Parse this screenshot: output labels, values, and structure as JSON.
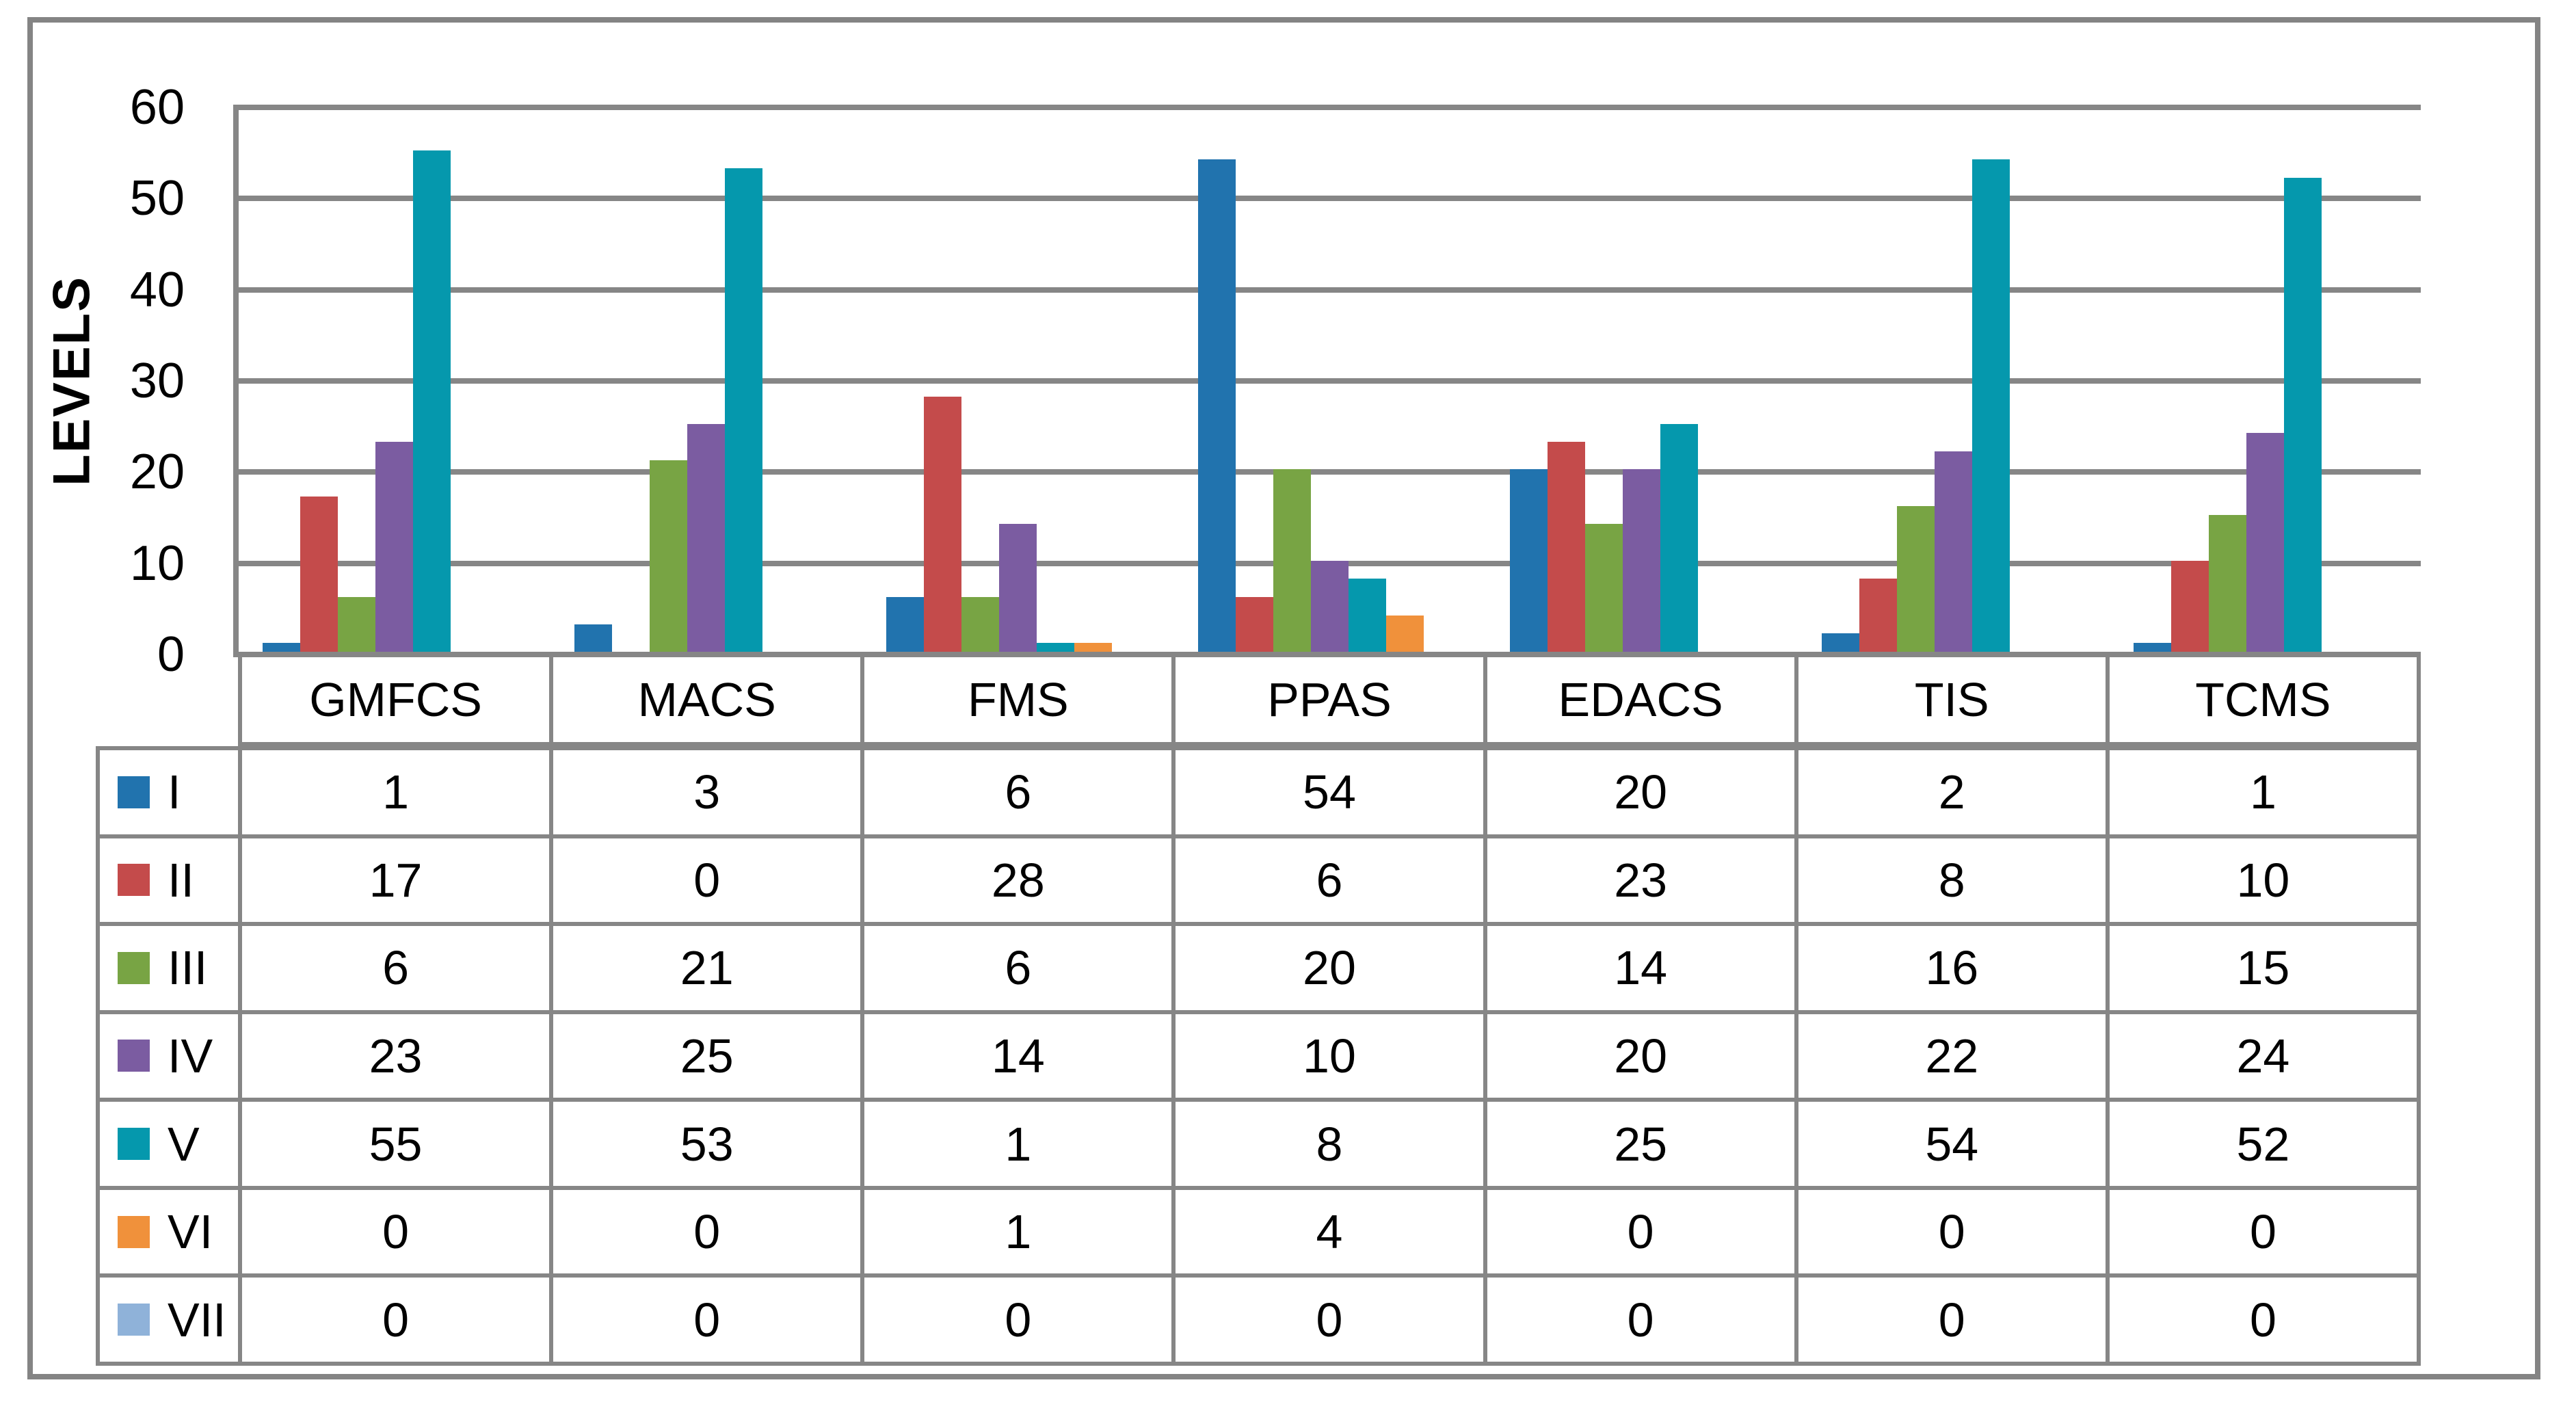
{
  "chart_data": {
    "type": "bar",
    "title": "",
    "xlabel": "",
    "ylabel": "LEVELS",
    "ylim": [
      0,
      60
    ],
    "yticks": [
      0,
      10,
      20,
      30,
      40,
      50,
      60
    ],
    "grid": "horizontal",
    "grid_color": "#868686",
    "frame_color": "#848484",
    "legend_position": "data-table-left-column",
    "categories": [
      "GMFCS",
      "MACS",
      "FMS",
      "PPAS",
      "EDACS",
      "TIS",
      "TCMS"
    ],
    "series": [
      {
        "name": "I",
        "color": "#2173AE",
        "values": [
          1,
          3,
          6,
          54,
          20,
          2,
          1
        ]
      },
      {
        "name": "II",
        "color": "#C44B4B",
        "values": [
          17,
          0,
          28,
          6,
          23,
          8,
          10
        ]
      },
      {
        "name": "III",
        "color": "#78A444",
        "values": [
          6,
          21,
          6,
          20,
          14,
          16,
          15
        ]
      },
      {
        "name": "IV",
        "color": "#7B5CA1",
        "values": [
          23,
          25,
          14,
          10,
          20,
          22,
          24
        ]
      },
      {
        "name": "V",
        "color": "#0598AD",
        "values": [
          55,
          53,
          1,
          8,
          25,
          54,
          52
        ]
      },
      {
        "name": "VI",
        "color": "#F0913B",
        "values": [
          0,
          0,
          1,
          4,
          0,
          0,
          0
        ]
      },
      {
        "name": "VII",
        "color": "#8FB2D9",
        "values": [
          0,
          0,
          0,
          0,
          0,
          0,
          0
        ]
      }
    ]
  }
}
